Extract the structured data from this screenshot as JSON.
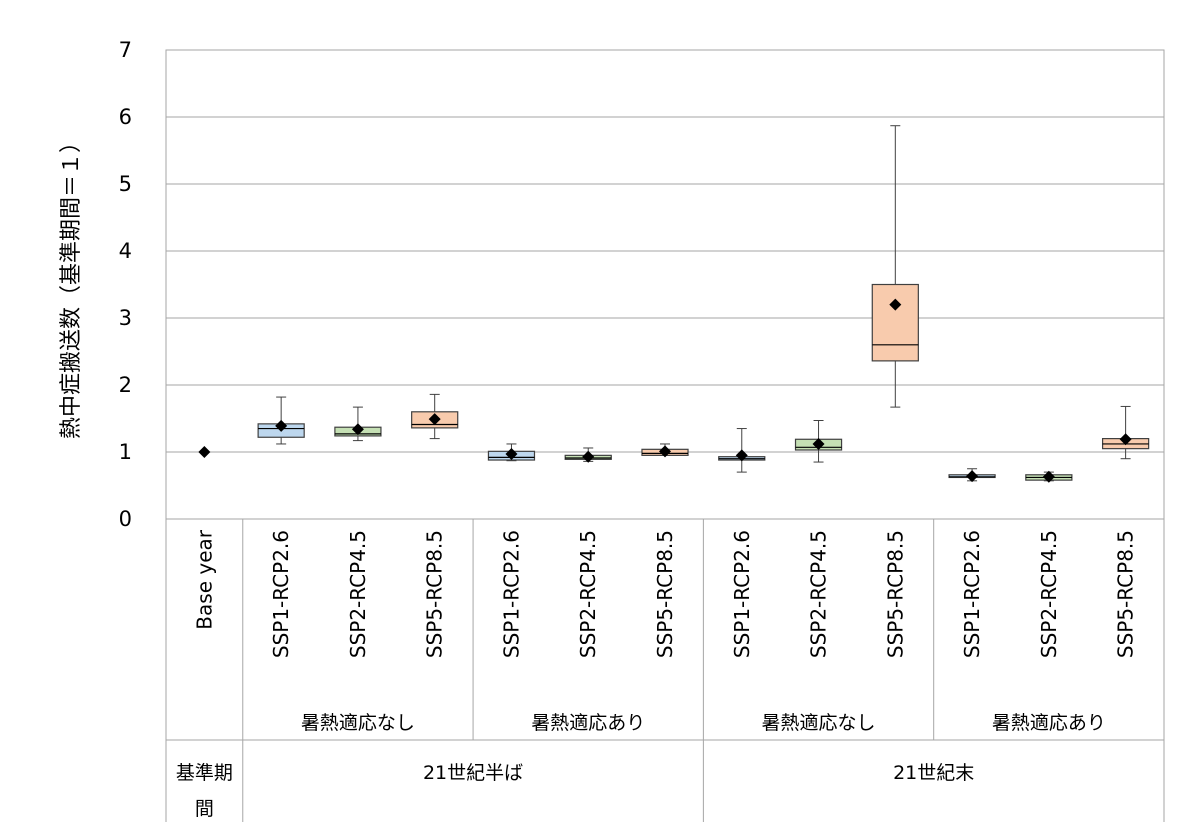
{
  "chart_data": {
    "type": "boxplot",
    "ylabel": "熱中症搬送数（基準期間＝１）",
    "ylim": [
      0,
      7
    ],
    "yticks": [
      0,
      1,
      2,
      3,
      4,
      5,
      6,
      7
    ],
    "grid": true,
    "colors": {
      "SSP1-RCP2.6": "#bdd7ee",
      "SSP2-RCP4.5": "#c5e0b4",
      "SSP5-RCP8.5": "#f8cbad"
    },
    "categories": [
      {
        "label": "Base year",
        "mean": 1.0
      },
      {
        "label": "SSP1-RCP2.6",
        "whisker_low": 1.12,
        "q1": 1.22,
        "median": 1.35,
        "q3": 1.42,
        "whisker_high": 1.82,
        "mean": 1.39
      },
      {
        "label": "SSP2-RCP4.5",
        "whisker_low": 1.17,
        "q1": 1.24,
        "median": 1.27,
        "q3": 1.37,
        "whisker_high": 1.67,
        "mean": 1.34
      },
      {
        "label": "SSP5-RCP8.5",
        "whisker_low": 1.2,
        "q1": 1.36,
        "median": 1.41,
        "q3": 1.6,
        "whisker_high": 1.86,
        "mean": 1.49
      },
      {
        "label": "SSP1-RCP2.6",
        "whisker_low": 0.87,
        "q1": 0.88,
        "median": 0.92,
        "q3": 1.01,
        "whisker_high": 1.12,
        "mean": 0.97
      },
      {
        "label": "SSP2-RCP4.5",
        "whisker_low": 0.86,
        "q1": 0.89,
        "median": 0.91,
        "q3": 0.95,
        "whisker_high": 1.06,
        "mean": 0.93
      },
      {
        "label": "SSP5-RCP8.5",
        "whisker_low": 0.95,
        "q1": 0.95,
        "median": 0.98,
        "q3": 1.04,
        "whisker_high": 1.12,
        "mean": 1.01
      },
      {
        "label": "SSP1-RCP2.6",
        "whisker_low": 0.7,
        "q1": 0.88,
        "median": 0.9,
        "q3": 0.93,
        "whisker_high": 1.35,
        "mean": 0.95
      },
      {
        "label": "SSP2-RCP4.5",
        "whisker_low": 0.85,
        "q1": 1.03,
        "median": 1.07,
        "q3": 1.19,
        "whisker_high": 1.47,
        "mean": 1.12
      },
      {
        "label": "SSP5-RCP8.5",
        "whisker_low": 1.67,
        "q1": 2.36,
        "median": 2.6,
        "q3": 3.5,
        "whisker_high": 5.87,
        "mean": 3.2
      },
      {
        "label": "SSP1-RCP2.6",
        "whisker_low": 0.57,
        "q1": 0.62,
        "median": 0.63,
        "q3": 0.66,
        "whisker_high": 0.75,
        "mean": 0.64
      },
      {
        "label": "SSP2-RCP4.5",
        "whisker_low": 0.57,
        "q1": 0.58,
        "median": 0.62,
        "q3": 0.66,
        "whisker_high": 0.7,
        "mean": 0.63
      },
      {
        "label": "SSP5-RCP8.5",
        "whisker_low": 0.9,
        "q1": 1.05,
        "median": 1.12,
        "q3": 1.2,
        "whisker_high": 1.68,
        "mean": 1.19
      }
    ],
    "groups_level2": [
      {
        "label": "",
        "from": 0,
        "to": 0
      },
      {
        "label": "暑熱適応なし",
        "from": 1,
        "to": 3
      },
      {
        "label": "暑熱適応あり",
        "from": 4,
        "to": 6
      },
      {
        "label": "暑熱適応なし",
        "from": 7,
        "to": 9
      },
      {
        "label": "暑熱適応あり",
        "from": 10,
        "to": 12
      }
    ],
    "groups_level3": [
      {
        "label": "基準期間",
        "from": 0,
        "to": 0
      },
      {
        "label": "21世紀半ば",
        "from": 1,
        "to": 6
      },
      {
        "label": "21世紀末",
        "from": 7,
        "to": 12
      }
    ]
  }
}
